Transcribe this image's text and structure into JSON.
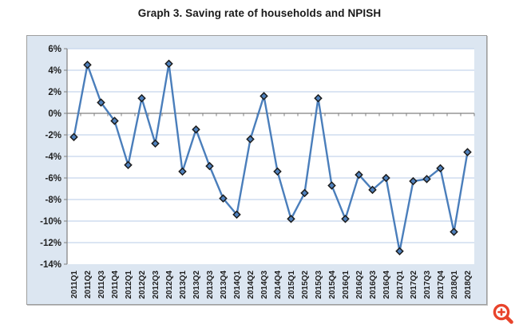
{
  "title": "Graph 3. Saving rate of households and NPISH",
  "chart_data": {
    "type": "line",
    "title": "Graph 3. Saving rate of households and NPISH",
    "x": [
      "2011Q1",
      "2011Q2",
      "2011Q3",
      "2011Q4",
      "2012Q1",
      "2012Q2",
      "2012Q3",
      "2012Q4",
      "2013Q1",
      "2013Q2",
      "2013Q3",
      "2013Q4",
      "2014Q1",
      "2014Q2",
      "2014Q3",
      "2014Q4",
      "2015Q1",
      "2015Q2",
      "2015Q3",
      "2015Q4",
      "2016Q1",
      "2016Q2",
      "2016Q3",
      "2016Q4",
      "2017Q1",
      "2017Q2",
      "2017Q3",
      "2017Q4",
      "2018Q1",
      "2018Q2"
    ],
    "series": [
      {
        "name": "Saving rate of households and NPISH (%)",
        "values": [
          -2.2,
          4.5,
          1.0,
          -0.7,
          -4.8,
          1.4,
          -2.8,
          4.6,
          -5.4,
          -1.5,
          -4.9,
          -7.9,
          -9.4,
          -2.4,
          1.6,
          -5.4,
          -9.8,
          -7.4,
          1.4,
          -6.7,
          -9.8,
          -5.7,
          -7.1,
          -6.0,
          -12.8,
          -6.3,
          -6.1,
          -5.1,
          -11.0,
          -3.6
        ]
      }
    ],
    "xlabel": "",
    "ylabel": "",
    "ylim": [
      -14,
      6
    ],
    "ytick_step": 2,
    "ytick_labels": [
      "6%",
      "4%",
      "2%",
      "0%",
      "-2%",
      "-4%",
      "-6%",
      "-8%",
      "-10%",
      "-12%",
      "-14%"
    ],
    "grid": true,
    "legend_position": "none",
    "colors": {
      "line": "#4a7ebb",
      "marker_fill": "#4f81bd",
      "marker_outline": "#1c1c1c",
      "gridline": "#c5d5ec",
      "zero_axis": "#808080",
      "axis": "#808080",
      "tick_label": "#1f1f1f",
      "chart_bg": "#dce6f1",
      "plot_bg": "#ffffff"
    }
  },
  "zoom_button": {
    "icon": "magnifier-plus",
    "color": "#e8432b"
  }
}
